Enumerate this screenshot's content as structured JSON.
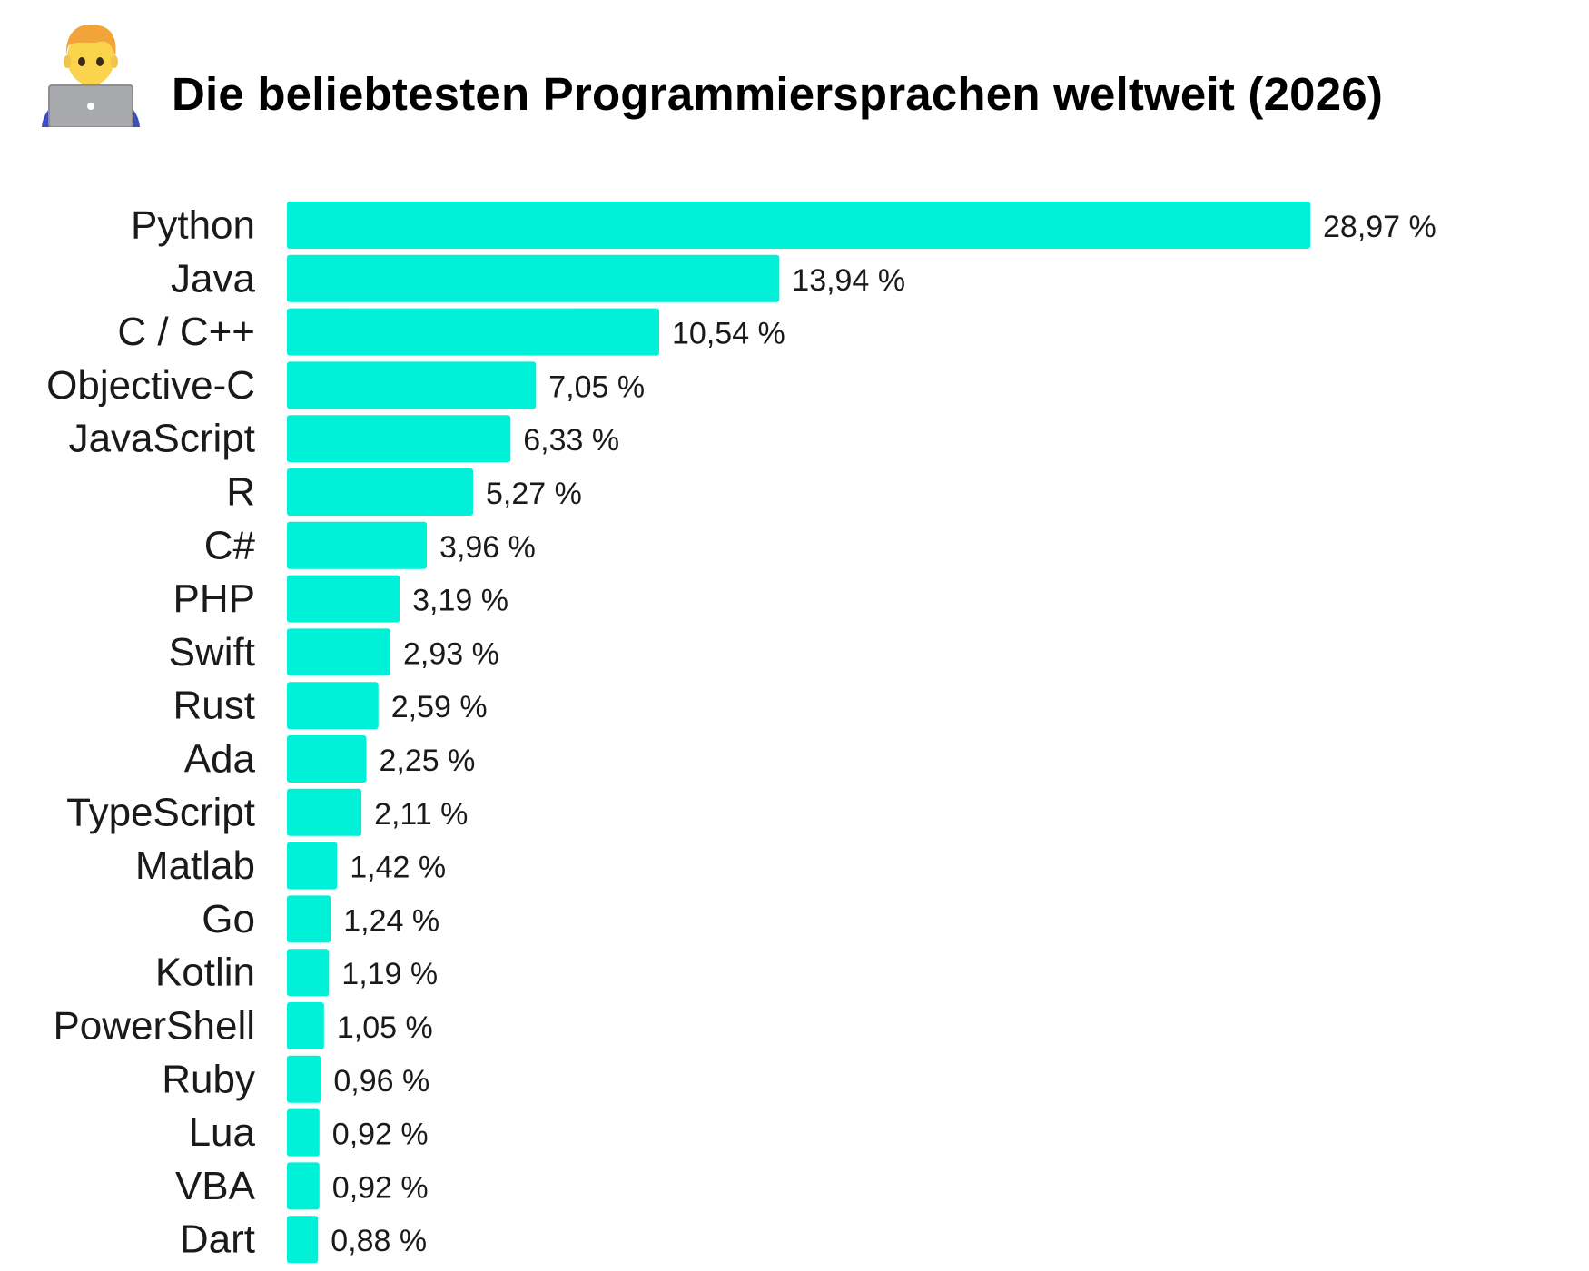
{
  "header": {
    "title": "Die beliebtesten Programmiersprachen weltweit (2026)",
    "icon": "technologist-with-laptop-icon"
  },
  "colors": {
    "bar": "#00F0D8",
    "text": "#1a1a1a",
    "background": "#ffffff"
  },
  "chart_data": {
    "type": "bar",
    "orientation": "horizontal",
    "title": "Die beliebtesten Programmiersprachen weltweit (2026)",
    "xlabel": "",
    "ylabel": "",
    "grid": false,
    "legend": "none",
    "xlim": [
      0,
      28.97
    ],
    "categories": [
      "Python",
      "Java",
      "C / C++",
      "Objective-C",
      "JavaScript",
      "R",
      "C#",
      "PHP",
      "Swift",
      "Rust",
      "Ada",
      "TypeScript",
      "Matlab",
      "Go",
      "Kotlin",
      "PowerShell",
      "Ruby",
      "Lua",
      "VBA",
      "Dart"
    ],
    "values": [
      28.97,
      13.94,
      10.54,
      7.05,
      6.33,
      5.27,
      3.96,
      3.19,
      2.93,
      2.59,
      2.25,
      2.11,
      1.42,
      1.24,
      1.19,
      1.05,
      0.96,
      0.92,
      0.92,
      0.88
    ],
    "value_labels": [
      "28,97 %",
      "13,94 %",
      "10,54 %",
      "7,05 %",
      "6,33 %",
      "5,27 %",
      "3,96 %",
      "3,19 %",
      "2,93 %",
      "2,59 %",
      "2,25 %",
      "2,11 %",
      "1,42 %",
      "1,24 %",
      "1,19 %",
      "1,05 %",
      "0,96 %",
      "0,92 %",
      "0,92 %",
      "0,88 %"
    ]
  }
}
